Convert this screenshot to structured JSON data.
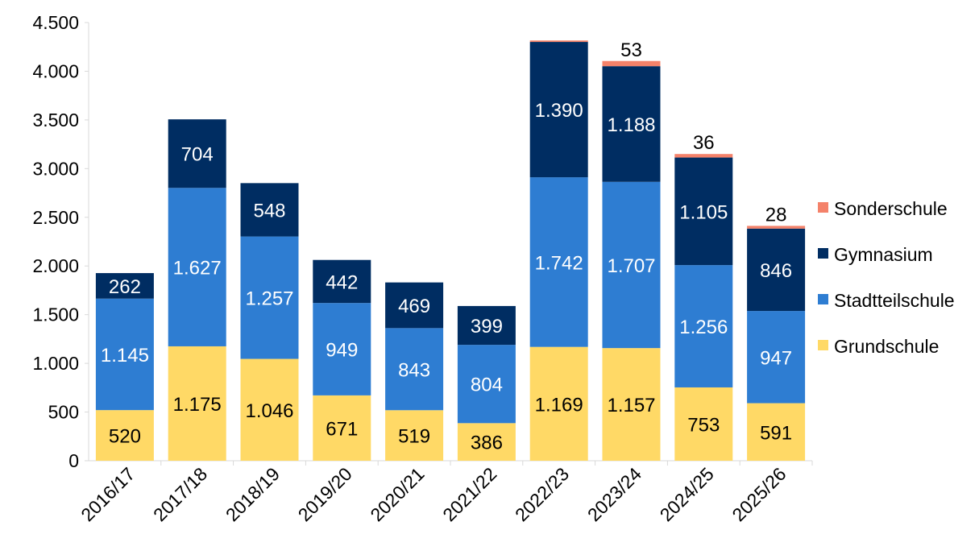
{
  "chart_data": {
    "type": "bar",
    "stacked": true,
    "title": "",
    "xlabel": "",
    "ylabel": "",
    "ylim": [
      0,
      4500
    ],
    "yticks": [
      0,
      500,
      1000,
      1500,
      2000,
      2500,
      3000,
      3500,
      4000,
      4500
    ],
    "ytick_labels": [
      "0",
      "500",
      "1.000",
      "1.500",
      "2.000",
      "2.500",
      "3.000",
      "3.500",
      "4.000",
      "4.500"
    ],
    "grid": false,
    "legend_position": "right",
    "categories": [
      "2016/17",
      "2017/18",
      "2018/19",
      "2019/20",
      "2020/21",
      "2021/22",
      "2022/23",
      "2023/24",
      "2024/25",
      "2025/26"
    ],
    "series": [
      {
        "name": "Grundschule",
        "color": "#FFD966",
        "label_color": "#000000",
        "values": [
          520,
          1175,
          1046,
          671,
          519,
          386,
          1169,
          1157,
          753,
          591
        ],
        "labels": [
          "520",
          "1.175",
          "1.046",
          "671",
          "519",
          "386",
          "1.169",
          "1.157",
          "753",
          "591"
        ]
      },
      {
        "name": "Stadtteilschule",
        "color": "#2E7DD2",
        "label_color": "#FFFFFF",
        "values": [
          1145,
          1627,
          1257,
          949,
          843,
          804,
          1742,
          1707,
          1256,
          947
        ],
        "labels": [
          "1.145",
          "1.627",
          "1.257",
          "949",
          "843",
          "804",
          "1.742",
          "1.707",
          "1.256",
          "947"
        ]
      },
      {
        "name": "Gymnasium",
        "color": "#002D62",
        "label_color": "#FFFFFF",
        "values": [
          262,
          704,
          548,
          442,
          469,
          399,
          1390,
          1188,
          1105,
          846
        ],
        "labels": [
          "262",
          "704",
          "548",
          "442",
          "469",
          "399",
          "1.390",
          "1.188",
          "1.105",
          "846"
        ]
      },
      {
        "name": "Sonderschule",
        "color": "#F4826A",
        "label_color": "#000000",
        "label_above": true,
        "values": [
          0,
          0,
          0,
          0,
          0,
          0,
          15,
          53,
          36,
          28
        ],
        "labels": [
          "",
          "",
          "",
          "",
          "",
          "",
          "",
          "53",
          "36",
          "28"
        ]
      }
    ]
  }
}
